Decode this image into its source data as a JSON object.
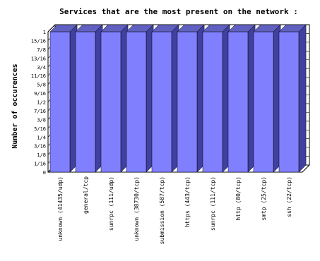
{
  "chart_data": {
    "type": "bar",
    "title": "Services that are the most present on the network :",
    "xlabel": "",
    "ylabel": "Number of occurences",
    "categories": [
      "unknown (41435/udp)",
      "general/tcp",
      "sunrpc (111/udp)",
      "unknown (38730/tcp)",
      "submission (587/tcp)",
      "https (443/tcp)",
      "sunrpc (111/tcp)",
      "http (80/tcp)",
      "smtp (25/tcp)",
      "ssh (22/tcp)"
    ],
    "values": [
      1,
      1,
      1,
      1,
      1,
      1,
      1,
      1,
      1,
      1
    ],
    "ylim": [
      0,
      1
    ],
    "yticks": [
      {
        "value": 0,
        "label": "0"
      },
      {
        "value": 0.0625,
        "label": "1/16"
      },
      {
        "value": 0.125,
        "label": "1/8"
      },
      {
        "value": 0.1875,
        "label": "3/16"
      },
      {
        "value": 0.25,
        "label": "1/4"
      },
      {
        "value": 0.3125,
        "label": "5/16"
      },
      {
        "value": 0.375,
        "label": "3/8"
      },
      {
        "value": 0.4375,
        "label": "7/16"
      },
      {
        "value": 0.5,
        "label": "1/2"
      },
      {
        "value": 0.5625,
        "label": "9/16"
      },
      {
        "value": 0.625,
        "label": "5/8"
      },
      {
        "value": 0.6875,
        "label": "11/16"
      },
      {
        "value": 0.75,
        "label": "3/4"
      },
      {
        "value": 0.8125,
        "label": "13/16"
      },
      {
        "value": 0.875,
        "label": "7/8"
      },
      {
        "value": 0.9375,
        "label": "15/16"
      },
      {
        "value": 1,
        "label": "1"
      }
    ],
    "grid": true,
    "colors": {
      "bar_front": "#8080ff",
      "bar_side": "#4040a0",
      "bar_top": "#6060c0",
      "grid": "#000000"
    }
  }
}
